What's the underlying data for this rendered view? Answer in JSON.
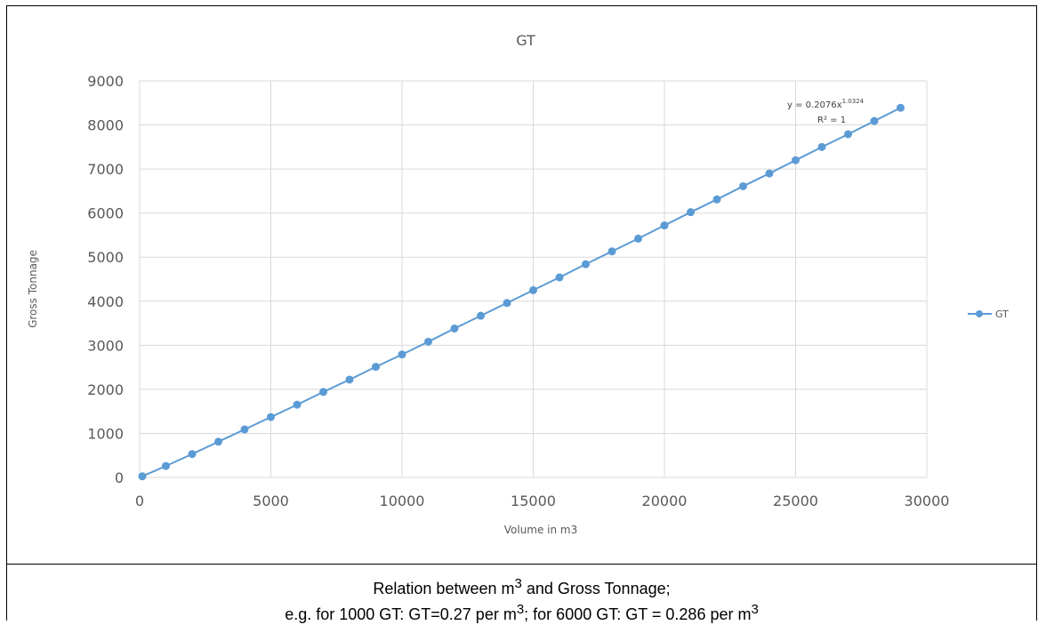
{
  "chart_data": {
    "type": "scatter",
    "title": "GT",
    "xlabel": "Volume in m3",
    "ylabel": "Gross Tonnage",
    "xlim": [
      0,
      30000
    ],
    "ylim": [
      0,
      9000
    ],
    "x_ticks": [
      "0",
      "5000",
      "10000",
      "15000",
      "20000",
      "25000",
      "30000"
    ],
    "y_ticks": [
      "0",
      "1000",
      "2000",
      "3000",
      "4000",
      "5000",
      "6000",
      "7000",
      "8000",
      "9000"
    ],
    "grid": true,
    "legend": "right",
    "series": [
      {
        "name": "GT",
        "color": "#5B9BD5",
        "x": [
          100,
          1000,
          2000,
          3000,
          4000,
          5000,
          6000,
          7000,
          8000,
          9000,
          10000,
          11000,
          12000,
          13000,
          14000,
          15000,
          16000,
          17000,
          18000,
          19000,
          20000,
          21000,
          22000,
          23000,
          24000,
          25000,
          26000,
          27000,
          28000,
          29000
        ],
        "y": [
          24,
          260,
          530,
          810,
          1090,
          1370,
          1650,
          1940,
          2220,
          2510,
          2790,
          3080,
          3380,
          3670,
          3960,
          4250,
          4540,
          4840,
          5130,
          5420,
          5720,
          6020,
          6310,
          6610,
          6900,
          7200,
          7500,
          7790,
          8090,
          8390
        ]
      }
    ],
    "trendline": {
      "equation_base": "y = 0.2076x",
      "equation_exp": "1.0324",
      "r2": "R² = 1"
    }
  },
  "caption": {
    "line1_a": "Relation between m",
    "line1_sup": "3",
    "line1_b": " and Gross Tonnage;",
    "line2_a": "e.g. for 1000 GT: GT=0.27 per m",
    "line2_sup1": "3",
    "line2_b": "; for 6000 GT: GT = 0.286 per m",
    "line2_sup2": "3"
  }
}
